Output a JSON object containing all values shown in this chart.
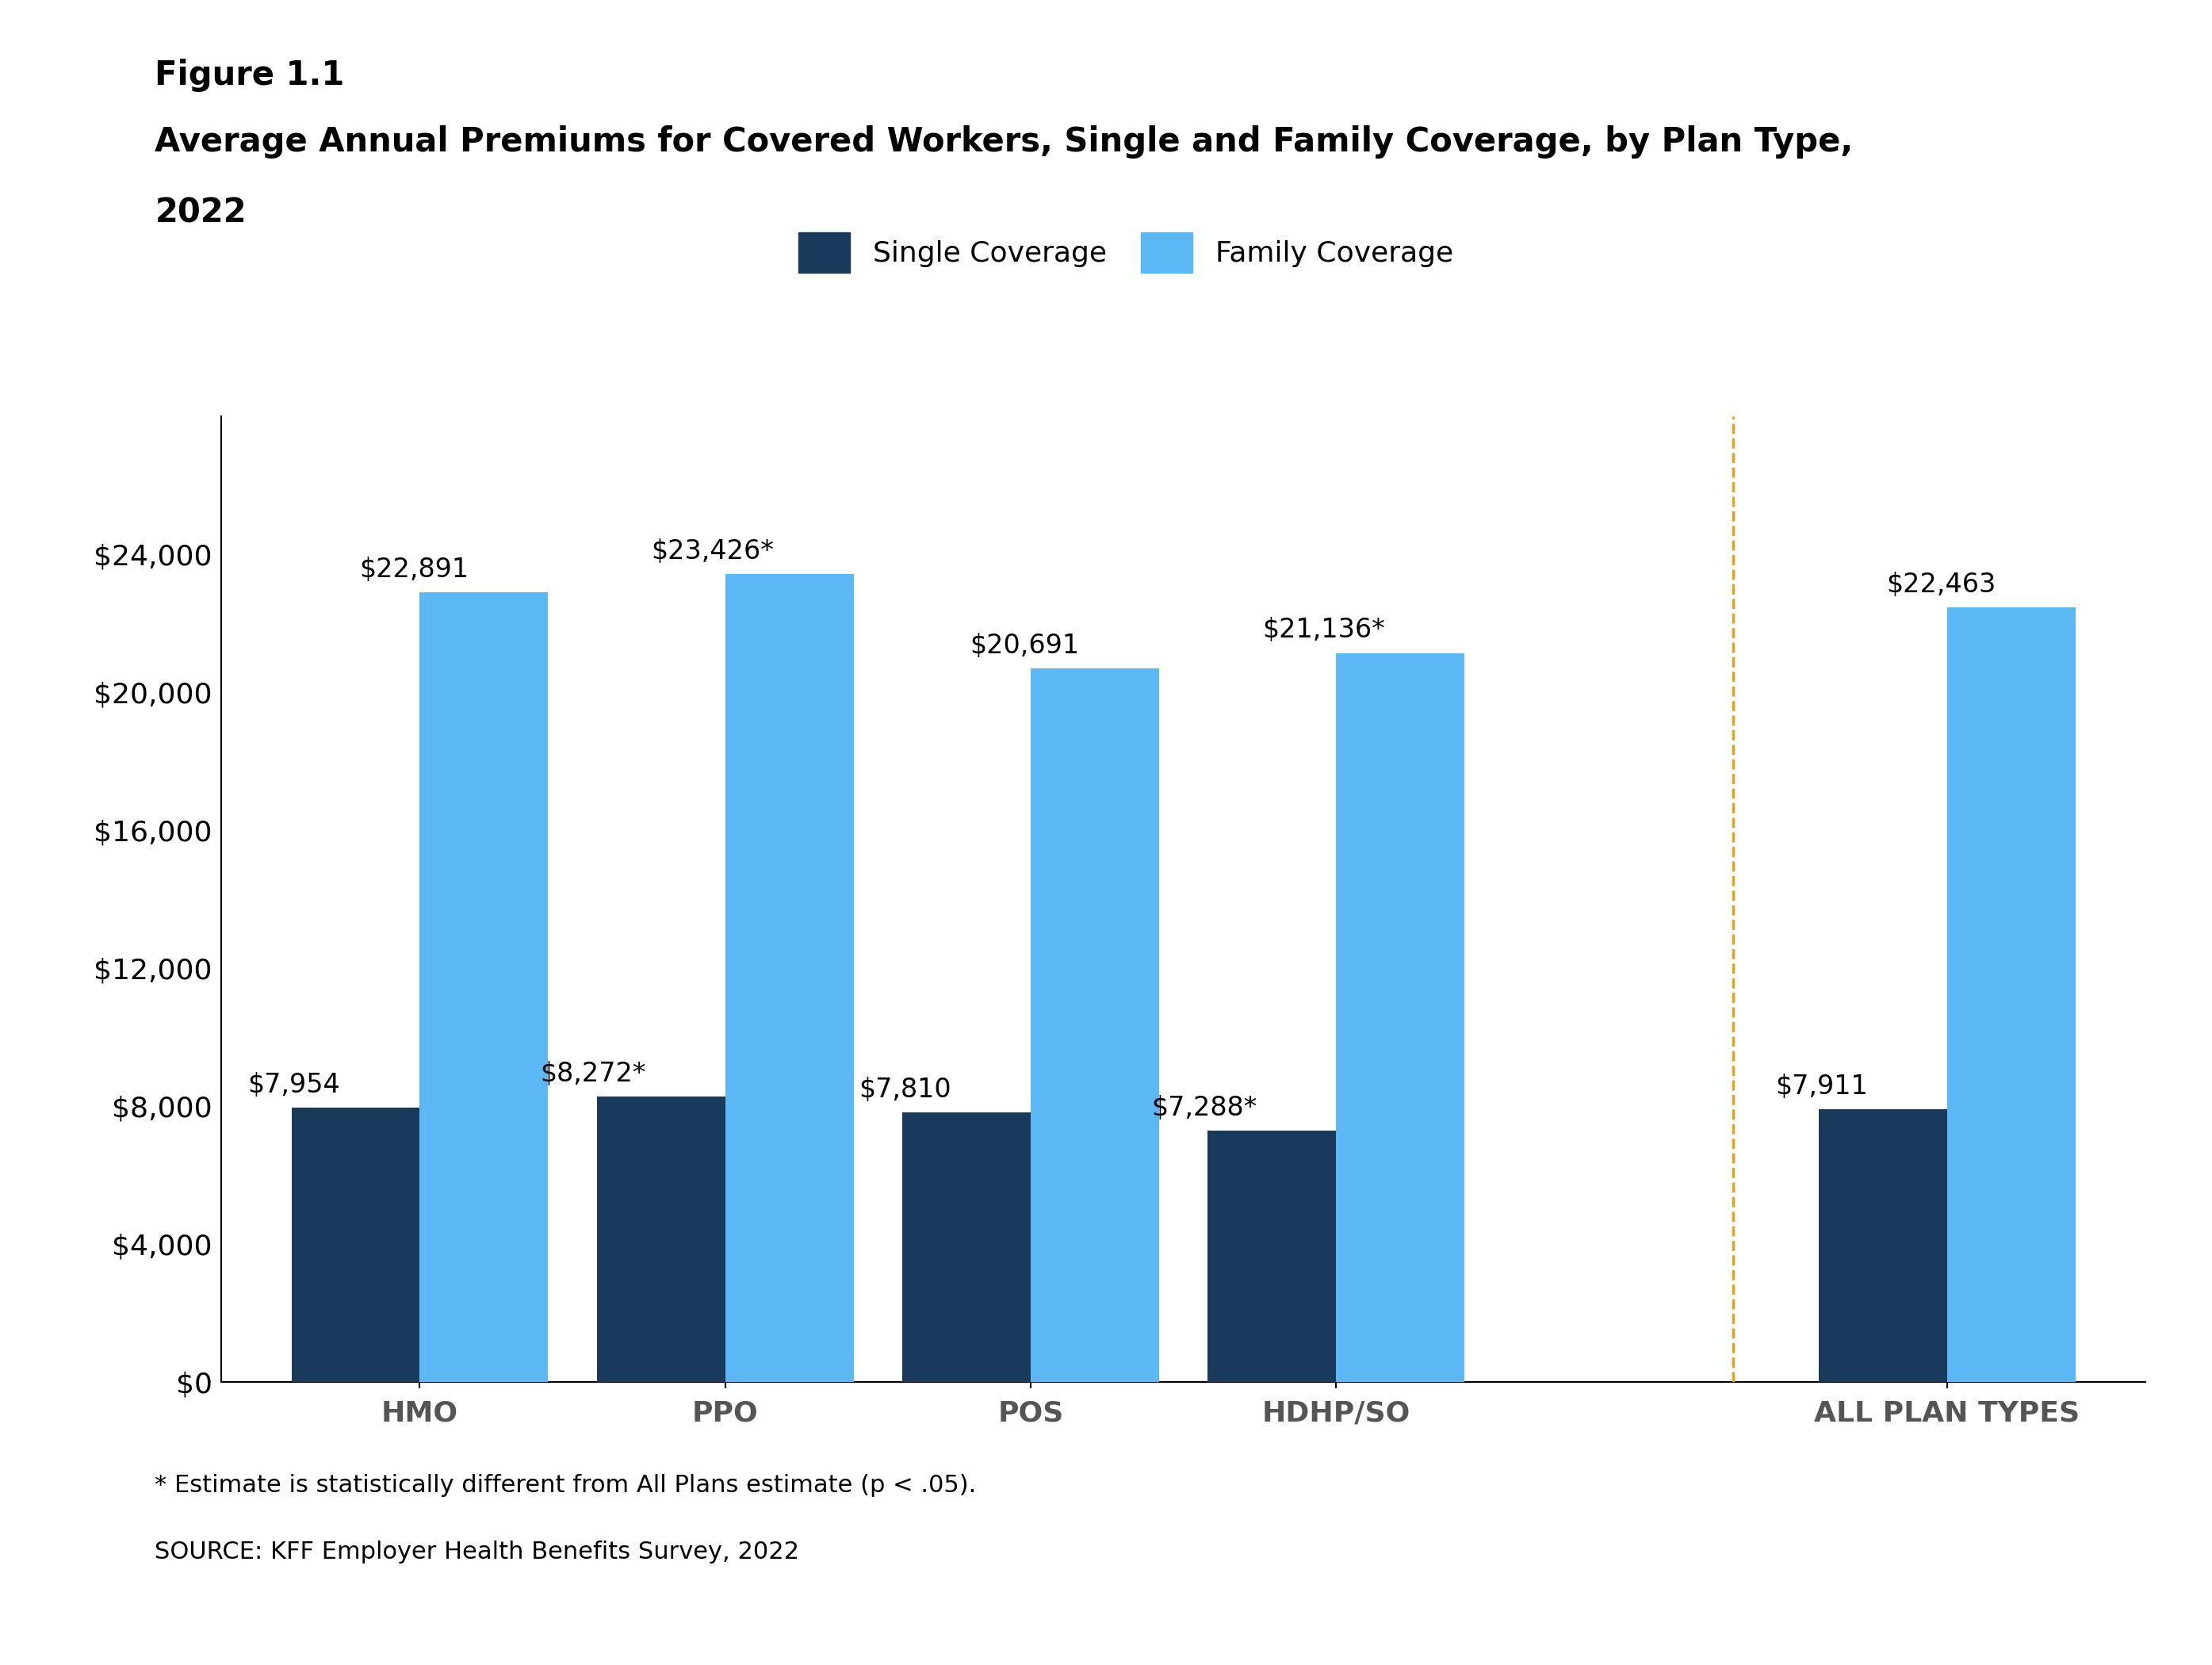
{
  "figure_label": "Figure 1.1",
  "title_line1": "Average Annual Premiums for Covered Workers, Single and Family Coverage, by Plan Type,",
  "title_line2": "2022",
  "categories": [
    "HMO",
    "PPO",
    "POS",
    "HDHP/SO",
    "ALL PLAN TYPES"
  ],
  "single_values": [
    7954,
    8272,
    7810,
    7288,
    7911
  ],
  "family_values": [
    22891,
    23426,
    20691,
    21136,
    22463
  ],
  "single_labels": [
    "$7,954",
    "$8,272*",
    "$7,810",
    "$7,288*",
    "$7,911"
  ],
  "family_labels": [
    "$22,891",
    "$23,426*",
    "$20,691",
    "$21,136*",
    "$22,463"
  ],
  "single_color": "#1a3a5c",
  "family_color": "#5bb8f5",
  "dashed_line_color": "#e8a020",
  "ylim": [
    0,
    28000
  ],
  "yticks": [
    0,
    4000,
    8000,
    12000,
    16000,
    20000,
    24000
  ],
  "ytick_labels": [
    "$0",
    "$4,000",
    "$8,000",
    "$12,000",
    "$16,000",
    "$20,000",
    "$24,000"
  ],
  "legend_single": "Single Coverage",
  "legend_family": "Family Coverage",
  "footnote": "* Estimate is statistically different from All Plans estimate (p < .05).",
  "source": "SOURCE: KFF Employer Health Benefits Survey, 2022",
  "bar_width": 0.42,
  "title_fontsize": 30,
  "tick_fontsize": 26,
  "legend_fontsize": 26,
  "annot_fontsize": 24,
  "footnote_fontsize": 22
}
